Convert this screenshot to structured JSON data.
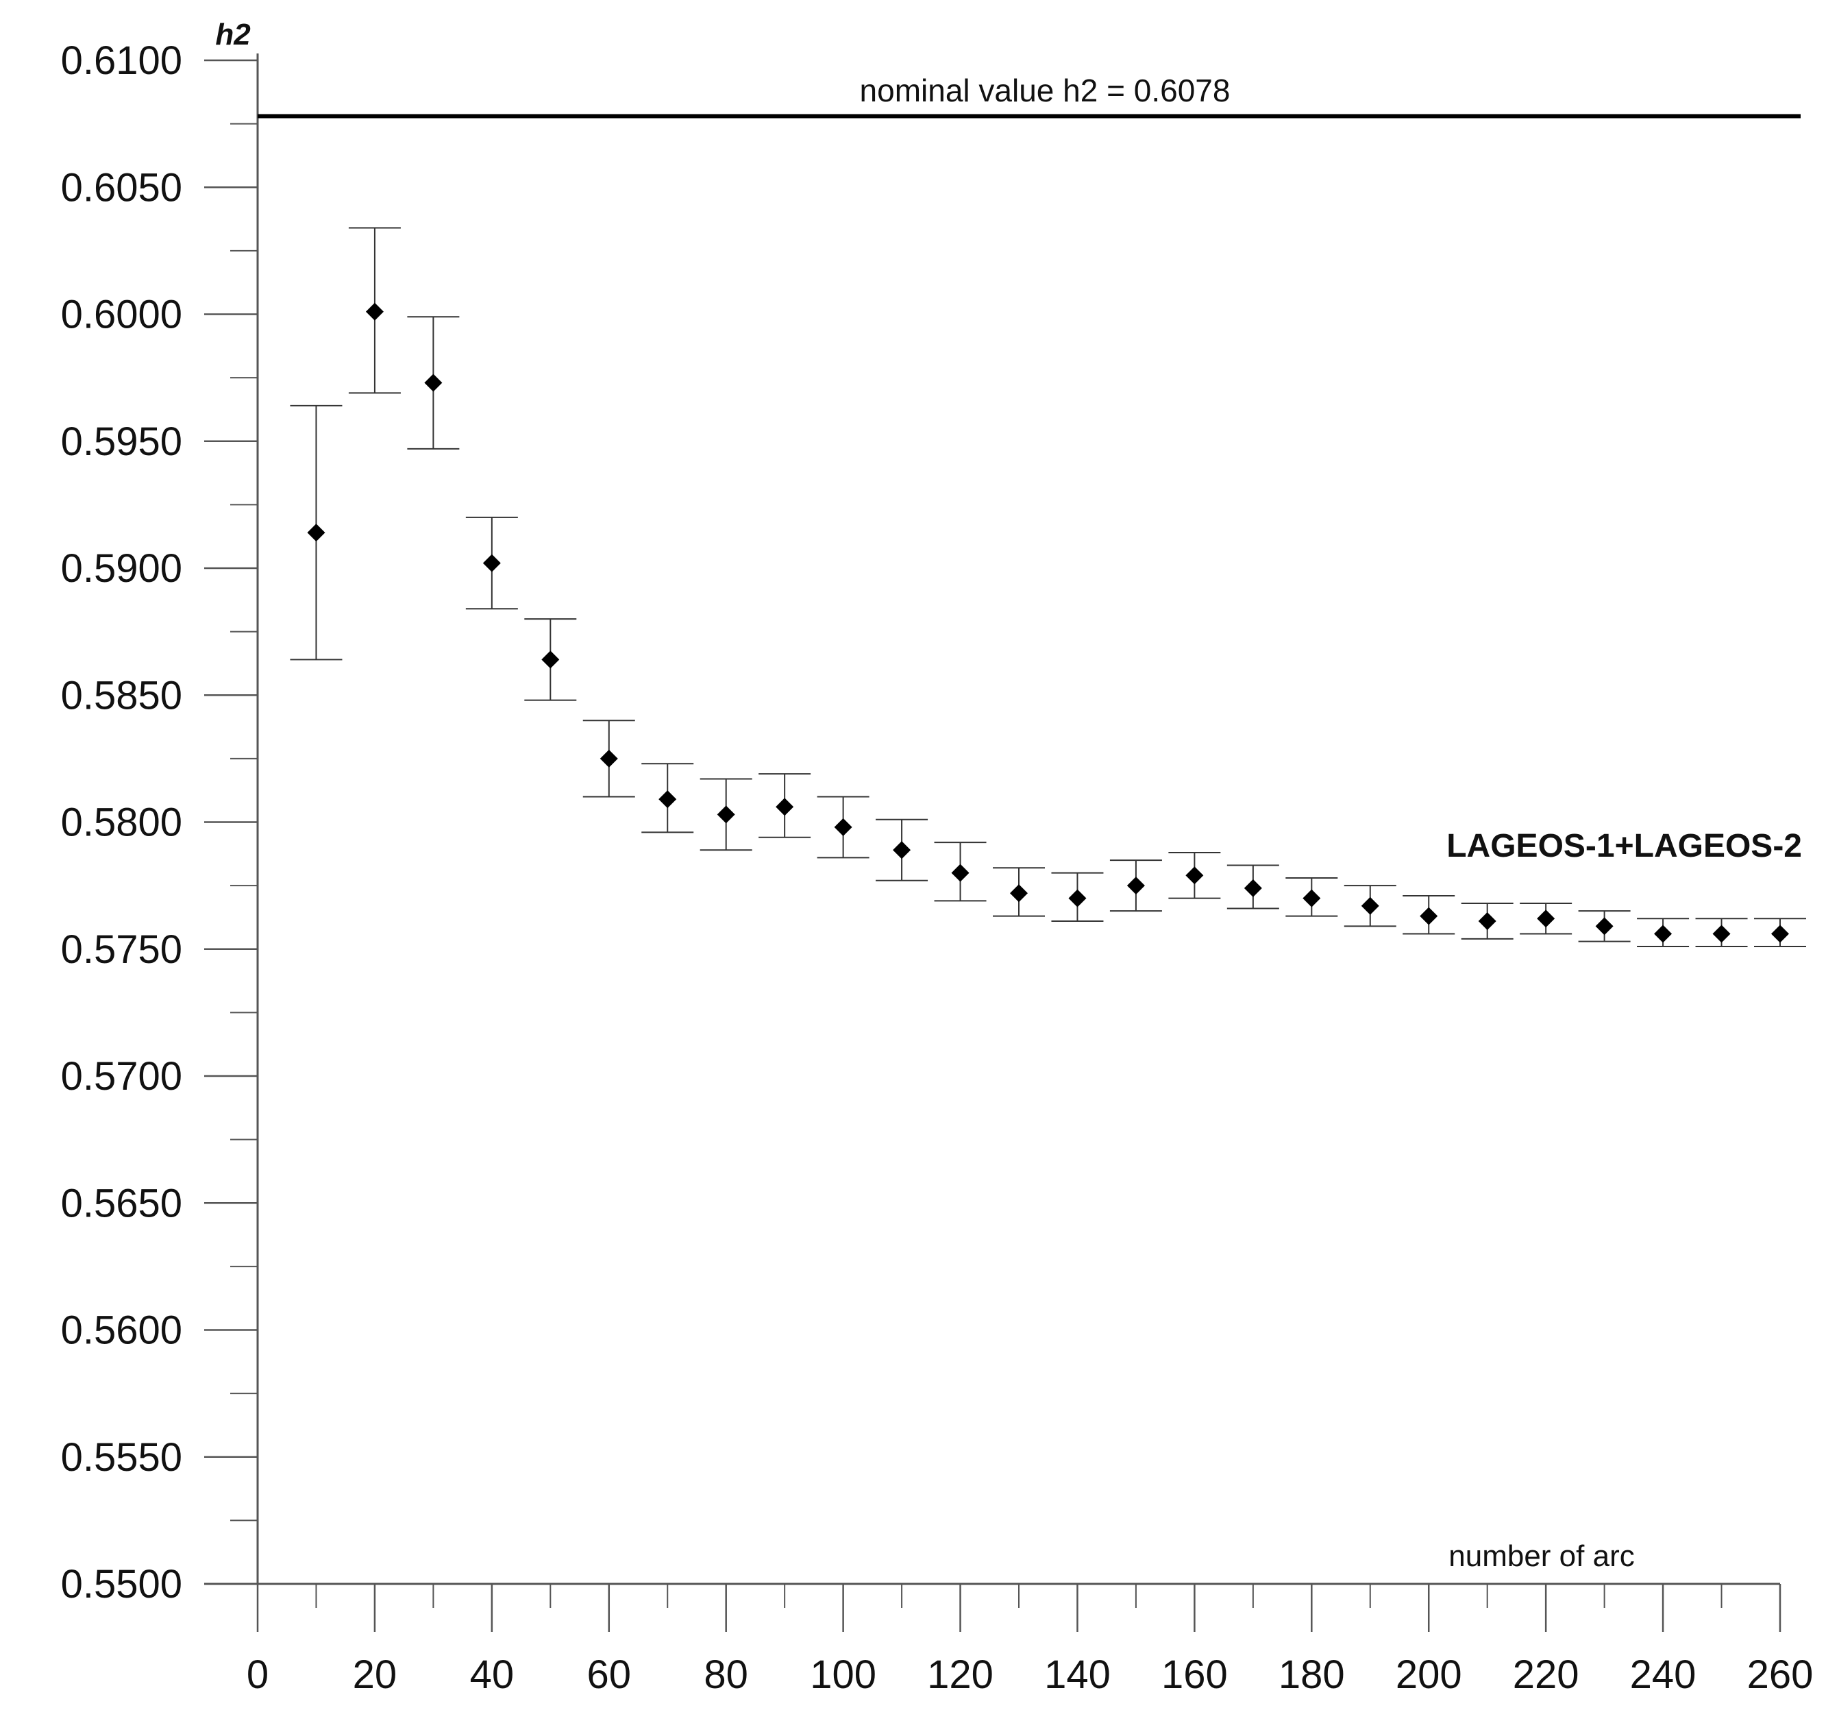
{
  "chart_data": {
    "type": "scatter",
    "ylabel": "h2",
    "xlabel": "number of arc",
    "xlim": [
      0,
      260
    ],
    "ylim": [
      0.55,
      0.61
    ],
    "x_ticks": [
      0,
      20,
      40,
      60,
      80,
      100,
      120,
      140,
      160,
      180,
      200,
      220,
      240,
      260
    ],
    "x_tick_labels": [
      "0",
      "20",
      "40",
      "60",
      "80",
      "100",
      "120",
      "140",
      "160",
      "180",
      "200",
      "220",
      "240",
      "260"
    ],
    "y_ticks": [
      0.55,
      0.555,
      0.56,
      0.565,
      0.57,
      0.575,
      0.58,
      0.585,
      0.59,
      0.595,
      0.6,
      0.605,
      0.61
    ],
    "y_tick_labels": [
      "0.5500",
      "0.5550",
      "0.5600",
      "0.5650",
      "0.5700",
      "0.5750",
      "0.5800",
      "0.5850",
      "0.5900",
      "0.5950",
      "0.6000",
      "0.6050",
      "0.6100"
    ],
    "grid": false,
    "reference_line": {
      "y": 0.6078,
      "label": "nominal value h2 = 0.6078"
    },
    "series_label": "LAGEOS-1+LAGEOS-2",
    "series": [
      {
        "marker": "diamond",
        "x": [
          10,
          20,
          30,
          40,
          50,
          60,
          70,
          80,
          90,
          100,
          110,
          120,
          130,
          140,
          150,
          160,
          170,
          180,
          190,
          200,
          210,
          220,
          230,
          240,
          250,
          260
        ],
        "y": [
          0.5914,
          0.6001,
          0.5973,
          0.5902,
          0.5864,
          0.5825,
          0.5809,
          0.5803,
          0.5806,
          0.5798,
          0.5789,
          0.578,
          0.5772,
          0.577,
          0.5775,
          0.5779,
          0.5774,
          0.577,
          0.5767,
          0.5763,
          0.5761,
          0.5762,
          0.5759,
          0.5756,
          0.5756,
          0.5756
        ],
        "error_low": [
          0.5864,
          0.5969,
          0.5947,
          0.5884,
          0.5848,
          0.581,
          0.5796,
          0.5789,
          0.5794,
          0.5786,
          0.5777,
          0.5769,
          0.5763,
          0.5761,
          0.5765,
          0.577,
          0.5766,
          0.5763,
          0.5759,
          0.5756,
          0.5754,
          0.5756,
          0.5753,
          0.5751,
          0.5751,
          0.5751
        ],
        "error_high": [
          0.5964,
          0.6034,
          0.5999,
          0.592,
          0.588,
          0.584,
          0.5823,
          0.5817,
          0.5819,
          0.581,
          0.5801,
          0.5792,
          0.5782,
          0.578,
          0.5785,
          0.5788,
          0.5783,
          0.5778,
          0.5775,
          0.5771,
          0.5768,
          0.5768,
          0.5765,
          0.5762,
          0.5762,
          0.5762
        ]
      }
    ],
    "colors": {
      "axis": "#555555",
      "marker": "#000000",
      "errorbar": "#333333",
      "reference": "#000000"
    }
  }
}
